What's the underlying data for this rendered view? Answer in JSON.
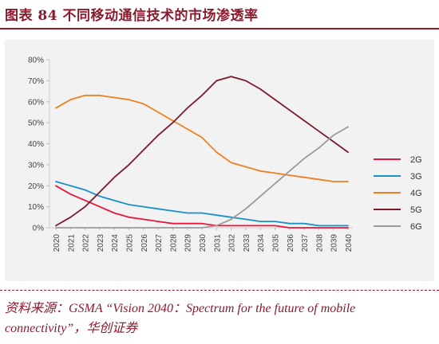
{
  "header": {
    "title": "图表 84    不同移动通信技术的市场渗透率"
  },
  "footer": {
    "source": "资料来源：GSMA “Vision 2040：Spectrum for the future of mobile connectivity”，华创证券"
  },
  "colors": {
    "accent": "#8b1a2e",
    "panel": "#f2f2f2",
    "axis_text": "#444444"
  },
  "chart_data": {
    "type": "line",
    "title": "",
    "xlabel": "",
    "ylabel": "",
    "x": [
      "2020",
      "2021",
      "2022",
      "2023",
      "2024",
      "2025",
      "2026",
      "2027",
      "2028",
      "2029",
      "2030",
      "2031",
      "2032",
      "2033",
      "2034",
      "2035",
      "2036",
      "2037",
      "2038",
      "2039",
      "2040"
    ],
    "yticks": [
      "0%",
      "10%",
      "20%",
      "30%",
      "40%",
      "50%",
      "60%",
      "70%",
      "80%"
    ],
    "ylim": [
      0,
      80
    ],
    "grid": false,
    "legend_position": "right",
    "series": [
      {
        "name": "2G",
        "color": "#e8173b",
        "values": [
          20,
          16,
          13,
          10,
          7,
          5,
          4,
          3,
          2,
          2,
          2,
          1,
          1,
          1,
          1,
          1,
          0,
          0,
          0,
          0,
          0
        ]
      },
      {
        "name": "3G",
        "color": "#1a8fc8",
        "values": [
          22,
          20,
          18,
          15,
          13,
          11,
          10,
          9,
          8,
          7,
          7,
          6,
          5,
          4,
          3,
          3,
          2,
          2,
          1,
          1,
          1
        ]
      },
      {
        "name": "4G",
        "color": "#ee7f1f",
        "values": [
          57,
          61,
          63,
          63,
          62,
          61,
          59,
          55,
          51,
          47,
          43,
          36,
          31,
          29,
          27,
          26,
          25,
          24,
          23,
          22,
          22
        ]
      },
      {
        "name": "5G",
        "color": "#7a1a2a",
        "values": [
          1,
          5,
          10,
          17,
          24,
          30,
          37,
          44,
          50,
          57,
          63,
          70,
          72,
          70,
          66,
          61,
          56,
          51,
          46,
          41,
          36
        ]
      },
      {
        "name": "6G",
        "color": "#9a9a9a",
        "values": [
          0,
          0,
          0,
          0,
          0,
          0,
          0,
          0,
          0,
          0,
          0,
          1,
          4,
          9,
          15,
          21,
          27,
          33,
          38,
          44,
          48
        ]
      }
    ]
  }
}
